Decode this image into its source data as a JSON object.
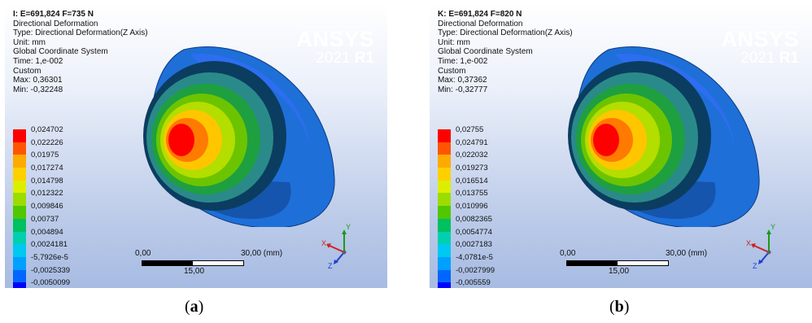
{
  "panels": [
    {
      "id": "a",
      "title": "I: E=691,824 F=735 N",
      "lines": [
        "Directional Deformation",
        "Type: Directional Deformation(Z Axis)",
        "Unit: mm",
        "Global Coordinate System",
        "Time: 1,e-002",
        "Custom",
        "Max: 0,36301",
        "Min: -0,32248"
      ],
      "legend": [
        "0,024702",
        "0,022226",
        "0,01975",
        "0,017274",
        "0,014798",
        "0,012322",
        "0,009846",
        "0,00737",
        "0,004894",
        "0,0024181",
        "-5,7926e-5",
        "-0,0025339",
        "-0,0050099"
      ],
      "scale": {
        "start": "0,00",
        "mid": "15,00",
        "end": "30,00 (mm)"
      },
      "caption_open": "(",
      "caption_letter": "a",
      "caption_close": ")"
    },
    {
      "id": "b",
      "title": "K: E=691,824 F=820 N",
      "lines": [
        "Directional Deformation",
        "Type: Directional Deformation(Z Axis)",
        "Unit: mm",
        "Global Coordinate System",
        "Time: 1,e-002",
        "Custom",
        "Max: 0,37362",
        "Min: -0,32777"
      ],
      "legend": [
        "0,02755",
        "0,024791",
        "0,022032",
        "0,019273",
        "0,016514",
        "0,013755",
        "0,010996",
        "0,0082365",
        "0,0054774",
        "0,0027183",
        "-4,0781e-5",
        "-0,0027999",
        "-0,005559"
      ],
      "scale": {
        "start": "0,00",
        "mid": "15,00",
        "end": "30,00 (mm)"
      },
      "caption_open": "(",
      "caption_letter": "b",
      "caption_close": ")"
    }
  ],
  "brand": {
    "name": "ANSYS",
    "year": "2021",
    "release": "R1"
  },
  "axes": {
    "x": "X",
    "y": "Y",
    "z": "Z"
  },
  "legend_colors": [
    "#ff0000",
    "#ff5500",
    "#ffaa00",
    "#ffd000",
    "#dcef00",
    "#9cdc00",
    "#4fc800",
    "#00c060",
    "#00d0b0",
    "#00c8f0",
    "#00a0ff",
    "#0066ff",
    "#0000ff"
  ]
}
